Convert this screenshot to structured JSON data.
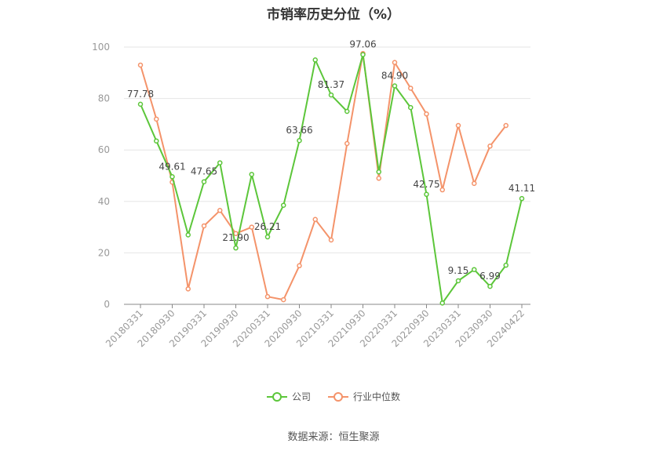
{
  "title": "市销率历史分位（%）",
  "source": "数据来源：恒生聚源",
  "legend": [
    {
      "name": "公司",
      "color": "#5cc63a"
    },
    {
      "name": "行业中位数",
      "color": "#f4936a"
    }
  ],
  "chart_data": {
    "type": "line",
    "title": "市销率历史分位（%）",
    "ylim": [
      0,
      100
    ],
    "yticks": [
      0,
      20,
      40,
      60,
      80,
      100
    ],
    "grid": true,
    "legend_position": "bottom",
    "x_tick_labels": [
      "20180331",
      "20180930",
      "20190331",
      "20190930",
      "20200331",
      "20200930",
      "20210331",
      "20210930",
      "20220331",
      "20220930",
      "20230331",
      "20230930",
      "20240422"
    ],
    "x": [
      "20180331",
      "20180630",
      "20180930",
      "20181231",
      "20190331",
      "20190630",
      "20190930",
      "20191231",
      "20200331",
      "20200630",
      "20200930",
      "20201231",
      "20210331",
      "20210630",
      "20210930",
      "20211231",
      "20220331",
      "20220630",
      "20220930",
      "20221231",
      "20230331",
      "20230630",
      "20230930",
      "20231231",
      "20240422"
    ],
    "series": [
      {
        "name": "公司",
        "color": "#5cc63a",
        "values": [
          77.78,
          63.5,
          49.61,
          27.0,
          47.65,
          55.0,
          21.9,
          50.5,
          26.21,
          38.5,
          63.66,
          95.0,
          81.37,
          75.0,
          97.06,
          51.5,
          84.9,
          76.5,
          42.75,
          0.5,
          9.15,
          13.5,
          6.99,
          15.2,
          41.11
        ]
      },
      {
        "name": "行业中位数",
        "color": "#f4936a",
        "values": [
          93.0,
          72.0,
          47.5,
          6.0,
          30.5,
          36.5,
          27.5,
          30.0,
          3.0,
          1.8,
          15.0,
          33.0,
          25.0,
          62.5,
          97.5,
          49.0,
          94.0,
          84.0,
          74.0,
          44.5,
          69.5,
          47.0,
          61.5,
          69.5,
          null
        ]
      }
    ],
    "data_labels": [
      {
        "index": 0,
        "text": "77.78"
      },
      {
        "index": 2,
        "text": "49.61"
      },
      {
        "index": 4,
        "text": "47.65"
      },
      {
        "index": 6,
        "text": "21.90"
      },
      {
        "index": 8,
        "text": "26.21"
      },
      {
        "index": 10,
        "text": "63.66"
      },
      {
        "index": 12,
        "text": "81.37"
      },
      {
        "index": 14,
        "text": "97.06"
      },
      {
        "index": 16,
        "text": "84.90"
      },
      {
        "index": 18,
        "text": "42.75"
      },
      {
        "index": 20,
        "text": "9.15"
      },
      {
        "index": 22,
        "text": "6.99"
      },
      {
        "index": 24,
        "text": "41.11"
      }
    ]
  }
}
